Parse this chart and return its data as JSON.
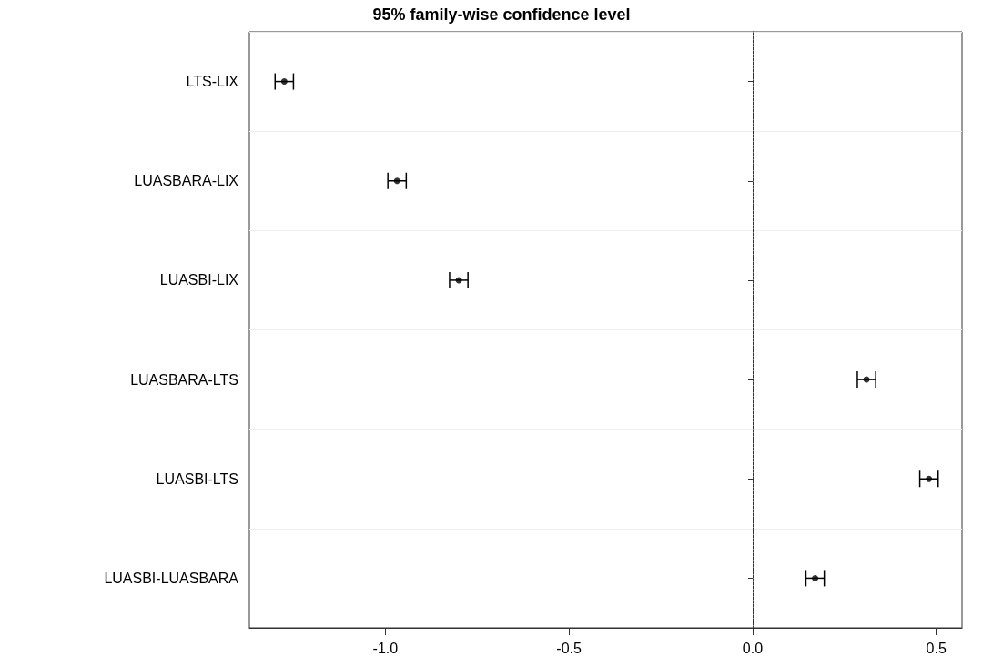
{
  "chart_data": {
    "type": "scatter",
    "title": "95% family-wise confidence level",
    "orientation": "horizontal",
    "categories": [
      "LTS-LIX",
      "LUASBARA-LIX",
      "LUASBI-LIX",
      "LUASBARA-LTS",
      "LUASBI-LTS",
      "LUASBI-LUASBARA"
    ],
    "values": [
      -1.275,
      -0.968,
      -0.8,
      0.31,
      0.48,
      0.17
    ],
    "errors": [
      0.025,
      0.025,
      0.025,
      0.025,
      0.025,
      0.025
    ],
    "color": "#000000",
    "marker": "circle",
    "xlim": [
      -1.37,
      0.57
    ],
    "xticks": [
      {
        "value": -1,
        "label": "-1.0"
      },
      {
        "value": -0.5,
        "label": "-0.5"
      },
      {
        "value": 0,
        "label": "0.0"
      },
      {
        "value": 0.5,
        "label": "0.5"
      }
    ],
    "grid": "y",
    "ref_lines": [
      {
        "axis": "x",
        "value": 0,
        "label": null,
        "color": "#888888",
        "line_style": "dotted"
      }
    ]
  }
}
